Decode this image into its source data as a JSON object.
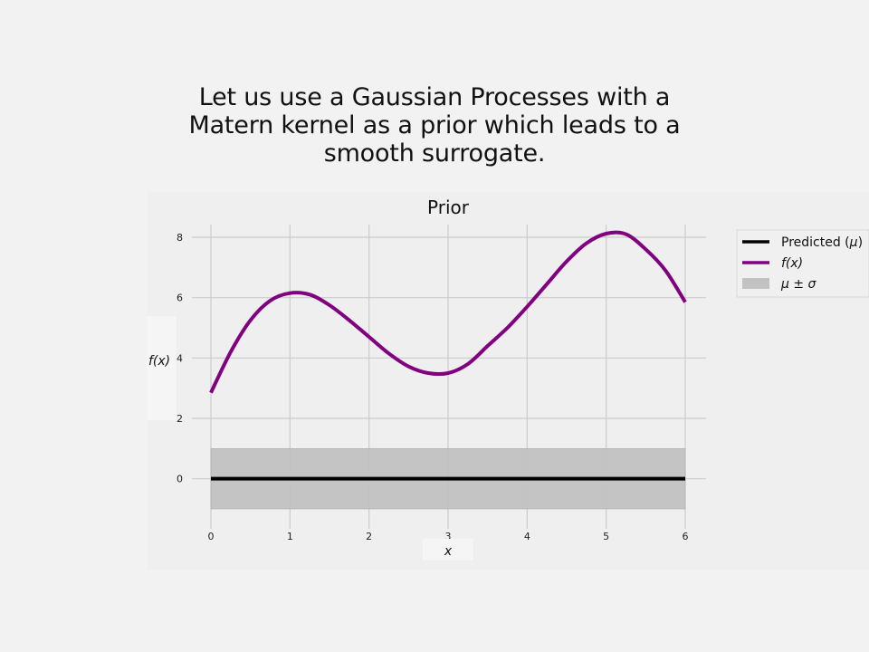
{
  "slide": {
    "title_lines": [
      "Let us use a Gaussian Processes with a",
      "Matern kernel as a prior which leads to a",
      "smooth surrogate."
    ]
  },
  "chart_data": {
    "type": "line",
    "title": "Prior",
    "xlabel": "x",
    "ylabel": "f(x)",
    "xlim": [
      0,
      6
    ],
    "ylim": [
      -1.6,
      8.6
    ],
    "xticks": [
      0,
      1,
      2,
      3,
      4,
      5,
      6
    ],
    "yticks": [
      0,
      2,
      4,
      6,
      8
    ],
    "grid": true,
    "legend_position": "outside-top-right",
    "series": [
      {
        "name": "Predicted (μ)",
        "kind": "line",
        "color": "#000000",
        "x": [
          0,
          6
        ],
        "y": [
          0,
          0
        ]
      },
      {
        "name": "f(x)",
        "kind": "line",
        "color": "#800080",
        "x": [
          0,
          0.25,
          0.5,
          0.75,
          1.0,
          1.25,
          1.5,
          1.75,
          2.0,
          2.25,
          2.5,
          2.75,
          3.0,
          3.25,
          3.5,
          3.75,
          4.0,
          4.25,
          4.5,
          4.75,
          5.0,
          5.25,
          5.5,
          5.75,
          6.0
        ],
        "y": [
          2.85,
          4.2,
          5.25,
          5.9,
          6.15,
          6.1,
          5.75,
          5.25,
          4.7,
          4.15,
          3.72,
          3.5,
          3.5,
          3.8,
          4.4,
          5.0,
          5.7,
          6.45,
          7.2,
          7.8,
          8.12,
          8.1,
          7.6,
          6.9,
          5.85
        ]
      },
      {
        "name": "μ ± σ",
        "kind": "band",
        "color": "#c2c2c2",
        "x": [
          0,
          6
        ],
        "lower": [
          -1,
          -1
        ],
        "upper": [
          1,
          1
        ]
      }
    ],
    "legend": {
      "entries": [
        {
          "prefix": "Predicted (",
          "mu": "μ",
          "suffix": ")",
          "color": "#000000",
          "kind": "line"
        },
        {
          "prefix": "",
          "mu": "f(x)",
          "suffix": "",
          "color": "#800080",
          "kind": "line"
        },
        {
          "prefix": "",
          "mu": "μ ± σ",
          "suffix": "",
          "color": "#c2c2c2",
          "kind": "patch"
        }
      ]
    }
  }
}
